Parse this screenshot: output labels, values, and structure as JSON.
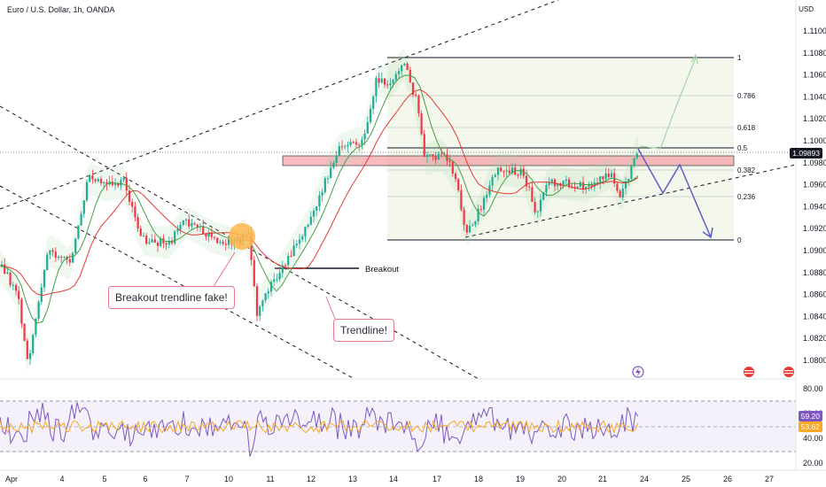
{
  "header": {
    "symbol_line": "Euro / U.S. Dollar, 1h, OANDA",
    "currency": "USD"
  },
  "price_axis": {
    "ticks": [
      "1.11000",
      "1.10800",
      "1.10600",
      "1.10400",
      "1.10200",
      "1.10000",
      "1.09800",
      "1.09600",
      "1.09400",
      "1.09200",
      "1.09000",
      "1.08800",
      "1.08600",
      "1.08400",
      "1.08200",
      "1.08000"
    ]
  },
  "rsi_axis": {
    "ticks": [
      "80.00",
      "60.00",
      "40.00",
      "20.00"
    ]
  },
  "time_axis": {
    "labels": [
      "Apr",
      "4",
      "5",
      "6",
      "7",
      "10",
      "11",
      "12",
      "13",
      "14",
      "17",
      "18",
      "19",
      "20",
      "21",
      "24",
      "25",
      "26",
      "27"
    ]
  },
  "price_tag": {
    "value": "1.09893",
    "color": "#131722"
  },
  "rsi_tags": [
    {
      "value": "59.20",
      "color": "#7e57c2"
    },
    {
      "value": "53.62",
      "color": "#f9a825"
    }
  ],
  "fib_levels": [
    "1",
    "0.786",
    "0.618",
    "0.5",
    "0.382",
    "0.236",
    "0"
  ],
  "annotations": {
    "breakout": "Breakout",
    "fake": "Breakout trendline fake!",
    "trendline": "Trendline!"
  },
  "colors": {
    "bull": "#22ab94",
    "bear": "#f23645",
    "rsi": "#7e57c2",
    "rsi_ma": "#f9a825",
    "zone": "#f5a3a8",
    "projection": "#5b5fc7"
  },
  "icons": [
    "lightning-event-icon",
    "us-flag-event-icon",
    "us-flag-event-icon-2"
  ]
}
